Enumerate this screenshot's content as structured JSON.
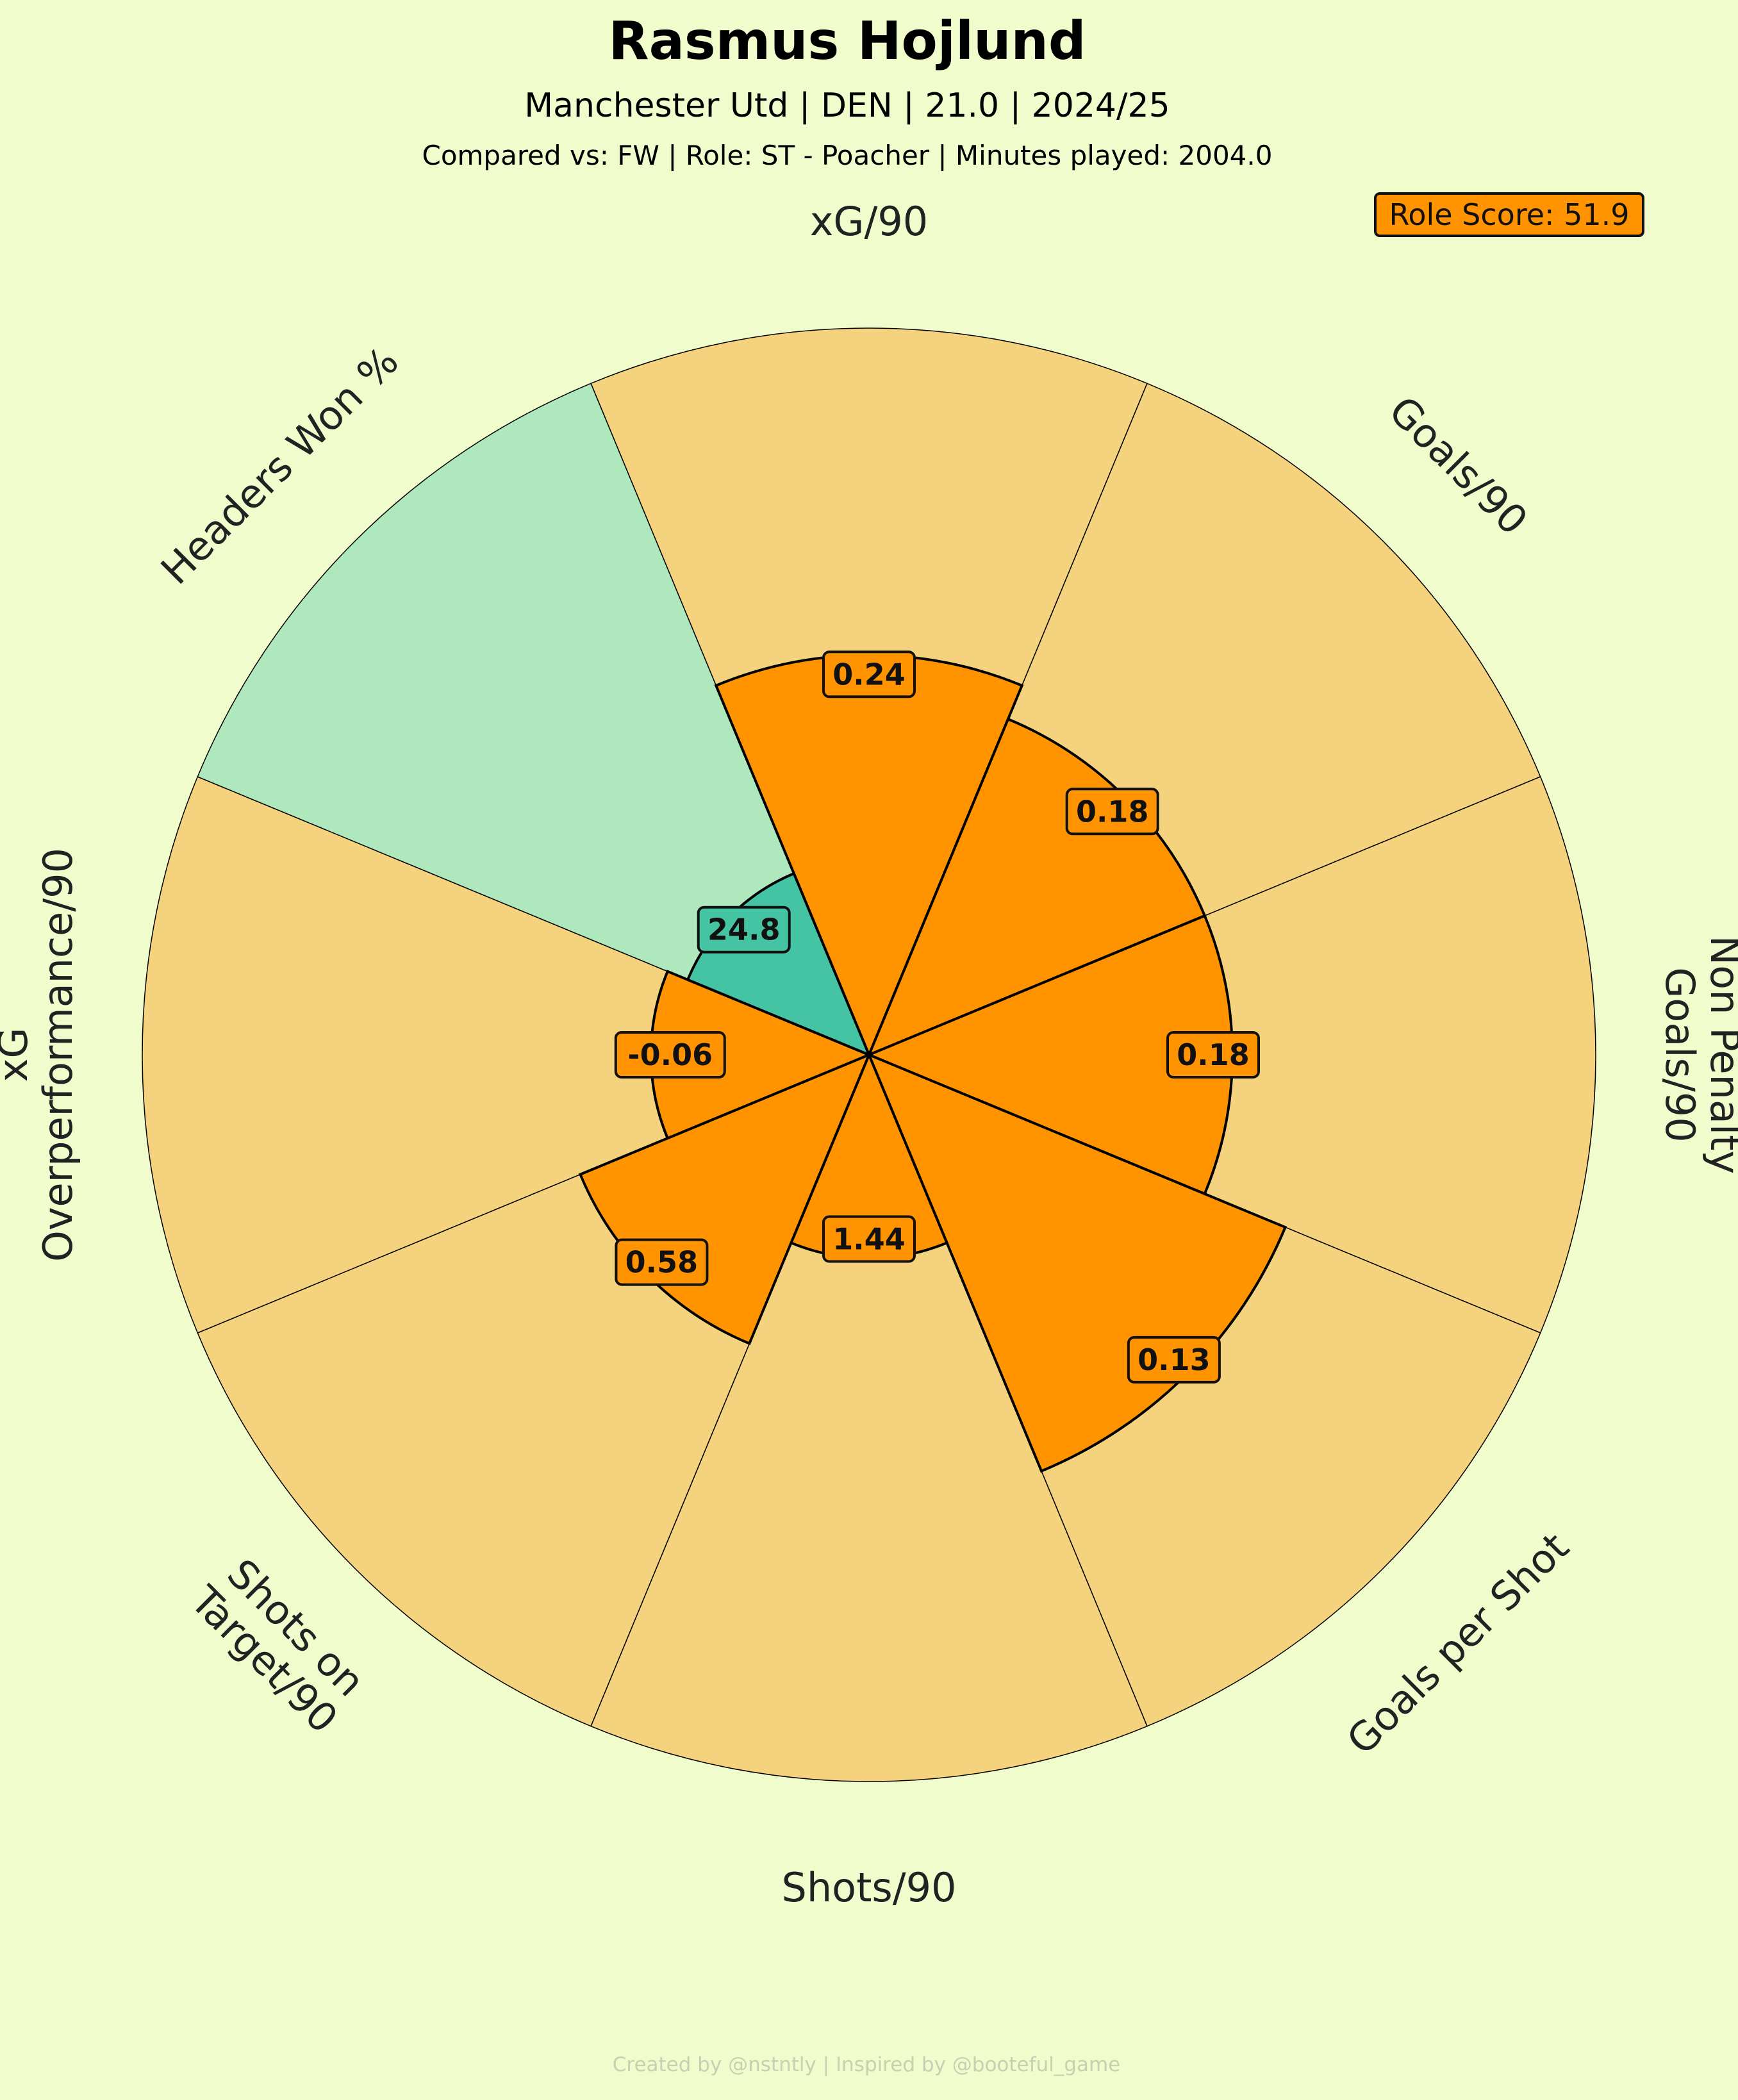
{
  "header": {
    "title": "Rasmus Hojlund",
    "subtitle": "Manchester Utd | DEN | 21.0 | 2024/25",
    "comparison": "Compared vs: FW | Role: ST - Poacher | Minutes played: 2004.0"
  },
  "role_score": "Role Score: 51.9",
  "credit": "Created by @nstntly | Inspired by @booteful_game",
  "colors": {
    "background": "#f0fccc",
    "slice_background_attacking": "#f5d27e",
    "slice_background_aerial": "#aee8bc",
    "slice_attacking": "#ff9300",
    "slice_aerial": "#45c4a4",
    "edge": "#000000",
    "role_box": "#ff9300"
  },
  "chart_data": {
    "type": "pizza",
    "range": [
      0,
      100
    ],
    "params": [
      {
        "label": "xG/90",
        "lines": [
          "xG/90"
        ],
        "value": 0.24,
        "value_label": "0.24",
        "percentile": 55,
        "group": "attacking"
      },
      {
        "label": "Goals/90",
        "lines": [
          "Goals/90"
        ],
        "value": 0.18,
        "value_label": "0.18",
        "percentile": 50,
        "group": "attacking"
      },
      {
        "label": "Non Penalty Goals/90",
        "lines": [
          "Non Penalty",
          "Goals/90"
        ],
        "value": 0.18,
        "value_label": "0.18",
        "percentile": 50,
        "group": "attacking"
      },
      {
        "label": "Goals per Shot",
        "lines": [
          "Goals per Shot"
        ],
        "value": 0.13,
        "value_label": "0.13",
        "percentile": 62,
        "group": "attacking"
      },
      {
        "label": "Shots/90",
        "lines": [
          "Shots/90"
        ],
        "value": 1.44,
        "value_label": "1.44",
        "percentile": 28,
        "group": "attacking"
      },
      {
        "label": "Shots on Target/90",
        "lines": [
          "Shots on",
          "Target/90"
        ],
        "value": 0.58,
        "value_label": "0.58",
        "percentile": 43,
        "group": "attacking"
      },
      {
        "label": "xG Overperformance/90",
        "lines": [
          "xG",
          "Overperformance/90"
        ],
        "value": -0.06,
        "value_label": "-0.06",
        "percentile": 30,
        "group": "attacking"
      },
      {
        "label": "Headers Won %",
        "lines": [
          "Headers Won %"
        ],
        "value": 24.8,
        "value_label": "24.8",
        "percentile": 27,
        "group": "aerial"
      }
    ]
  }
}
